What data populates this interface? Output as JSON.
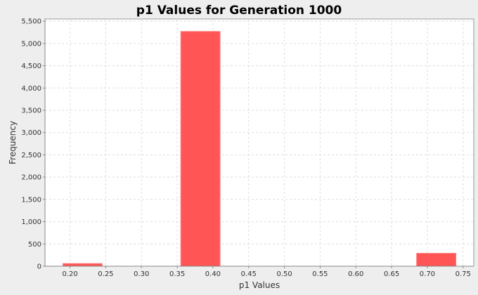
{
  "chart_data": {
    "type": "bar",
    "title": "p1 Values for Generation 1000",
    "xlabel": "p1 Values",
    "ylabel": "Frequency",
    "xlim": [
      0.165,
      0.765
    ],
    "ylim": [
      0,
      5550
    ],
    "x_ticks": [
      0.2,
      0.25,
      0.3,
      0.35,
      0.4,
      0.45,
      0.5,
      0.55,
      0.6,
      0.65,
      0.7,
      0.75
    ],
    "x_tick_labels": [
      "0.20",
      "0.25",
      "0.30",
      "0.35",
      "0.40",
      "0.45",
      "0.50",
      "0.55",
      "0.60",
      "0.65",
      "0.70",
      "0.75"
    ],
    "y_ticks": [
      0,
      500,
      1000,
      1500,
      2000,
      2500,
      3000,
      3500,
      4000,
      4500,
      5000,
      5500
    ],
    "y_tick_labels": [
      "0",
      "500",
      "1,000",
      "1,500",
      "2,000",
      "2,500",
      "3,000",
      "3,500",
      "4,000",
      "4,500",
      "5,000",
      "5,500"
    ],
    "bars": [
      {
        "x_start": 0.19,
        "x_end": 0.245,
        "value": 60
      },
      {
        "x_start": 0.355,
        "x_end": 0.41,
        "value": 5270
      },
      {
        "x_start": 0.685,
        "x_end": 0.74,
        "value": 290
      }
    ],
    "grid": true,
    "colors": {
      "bar": "#ff5555",
      "bar_edge": "#ff8080",
      "plot_background": "#ffffff",
      "page_background": "#eeeeee",
      "grid": "#dddddd"
    }
  }
}
